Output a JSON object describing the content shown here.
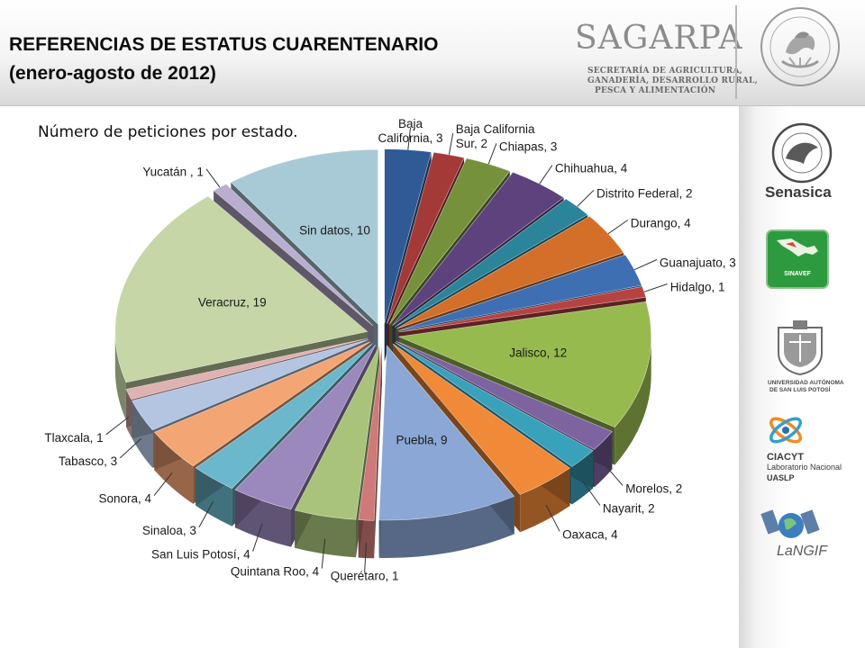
{
  "slide": {
    "title_line1": "REFERENCIAS DE ESTATUS CUARENTENARIO",
    "title_line2": "(enero-agosto de 2012)",
    "subtitle": "Número de peticiones por estado."
  },
  "logos": {
    "sagarpa_name": "SAGARPA",
    "sagarpa_line1": "SECRETARÍA DE AGRICULTURA,",
    "sagarpa_line2": "GANADERÍA, DESARROLLO RURAL,",
    "sagarpa_line3": "PESCA Y ALIMENTACIÓN",
    "senasica": "Senasica",
    "sinavef": "SINAVEF",
    "uaslp_line1": "UNIVERSIDAD AUTÓNOMA",
    "uaslp_line2": "DE SAN LUIS POTOSÍ",
    "ciacyt_line1": "CIACYT",
    "ciacyt_line2": "Laboratorio Nacional",
    "ciacyt_line3": "UASLP",
    "langif": "LaNGIF"
  },
  "chart_data": {
    "type": "pie",
    "title": "Número de peticiones por estado.",
    "categories": [
      "Baja California",
      "Baja California Sur",
      "Chiapas",
      "Chihuahua",
      "Distrito Federal",
      "Durango",
      "Guanajuato",
      "Hidalgo",
      "Jalisco",
      "Morelos",
      "Nayarit",
      "Oaxaca",
      "Puebla",
      "Querétaro",
      "Quintana Roo",
      "San Luis Potosí",
      "Sinaloa",
      "Sonora",
      "Tabasco",
      "Tlaxcala",
      "Veracruz",
      "Yucatán",
      "Sin datos"
    ],
    "values": [
      3,
      2,
      3,
      4,
      2,
      4,
      3,
      1,
      12,
      2,
      2,
      4,
      9,
      1,
      4,
      4,
      3,
      4,
      3,
      1,
      19,
      1,
      10
    ],
    "labels": [
      [
        "Baja",
        "California, 3"
      ],
      [
        "Baja California",
        "Sur, 2"
      ],
      [
        "Chiapas, 3"
      ],
      [
        "Chihuahua, 4"
      ],
      [
        "Distrito Federal, 2"
      ],
      [
        "Durango, 4"
      ],
      [
        "Guanajuato, 3"
      ],
      [
        "Hidalgo, 1"
      ],
      [
        "Jalisco, 12"
      ],
      [
        "Morelos, 2"
      ],
      [
        "Nayarit, 2"
      ],
      [
        "Oaxaca, 4"
      ],
      [
        "Puebla, 9"
      ],
      [
        "Querétaro, 1"
      ],
      [
        "Quintana Roo, 4"
      ],
      [
        "San Luis Potosí, 4"
      ],
      [
        "Sinaloa, 3"
      ],
      [
        "Sonora, 4"
      ],
      [
        "Tabasco, 3"
      ],
      [
        "Tlaxcala, 1"
      ],
      [
        "Veracruz, 19"
      ],
      [
        "Yucatán , 1"
      ],
      [
        "Sin datos, 10"
      ]
    ],
    "colors": [
      "#2f5a96",
      "#a33a37",
      "#76913c",
      "#5d427e",
      "#2b8499",
      "#d36f29",
      "#3e6fb3",
      "#b74341",
      "#97ba4f",
      "#7d64a1",
      "#3aa1bb",
      "#f08938",
      "#8aa7d6",
      "#cf7a78",
      "#a9c47a",
      "#9b88bd",
      "#6bb7cc",
      "#f4a574",
      "#b4c5e2",
      "#deb2b0",
      "#c6d6a6",
      "#b9add0",
      "#a8cad7"
    ]
  }
}
